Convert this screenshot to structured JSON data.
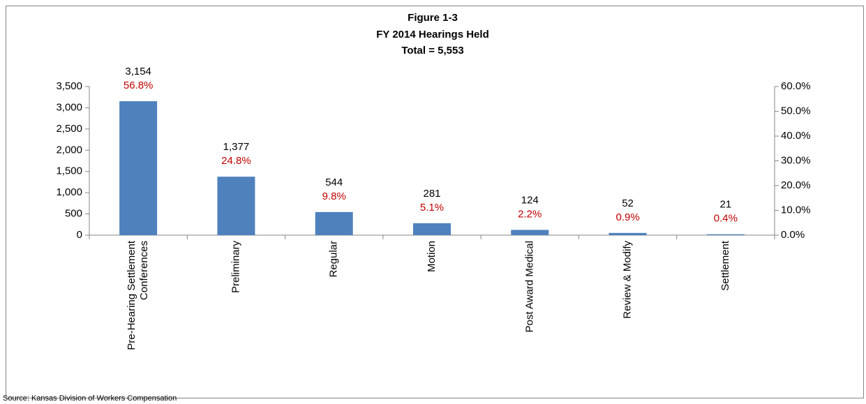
{
  "chart_data": {
    "type": "bar",
    "title": "Figure 1-3",
    "subtitle": "FY 2014 Hearings Held",
    "total_label": "Total = 5,553",
    "source": "Source: Kansas Division of Workers Compensation",
    "categories": [
      "Pre-Hearing Settlement\nConferences",
      "Preliminary",
      "Regular",
      "Motion",
      "Post Award Medical",
      "Review & Modify",
      "Settlement"
    ],
    "values": [
      3154,
      1377,
      544,
      281,
      124,
      52,
      21
    ],
    "value_labels": [
      "3,154",
      "1,377",
      "544",
      "281",
      "124",
      "52",
      "21"
    ],
    "share_labels": [
      "56.8%",
      "24.8%",
      "9.8%",
      "5.1%",
      "2.2%",
      "0.9%",
      "0.4%"
    ],
    "color": "#4f81bd",
    "ylim": [
      0,
      3500
    ],
    "yticks": [
      0,
      500,
      {
        "value": 1000,
        "label": "1,000"
      },
      {
        "value": 1500,
        "label": "1,500"
      },
      {
        "value": 2000,
        "label": "2,000"
      },
      {
        "value": 2500,
        "label": "2,500"
      },
      {
        "value": 3000,
        "label": "3,000"
      },
      {
        "value": 3500,
        "label": "3,500"
      }
    ],
    "y2lim": [
      0,
      60
    ],
    "y2ticks": [
      {
        "value": 0,
        "label": "0.0%"
      },
      {
        "value": 10,
        "label": "10.0%"
      },
      {
        "value": 20,
        "label": "20.0%"
      },
      {
        "value": 30,
        "label": "30.0%"
      },
      {
        "value": 40,
        "label": "40.0%"
      },
      {
        "value": 50,
        "label": "50.0%"
      },
      {
        "value": 60,
        "label": "60.0%"
      }
    ]
  }
}
